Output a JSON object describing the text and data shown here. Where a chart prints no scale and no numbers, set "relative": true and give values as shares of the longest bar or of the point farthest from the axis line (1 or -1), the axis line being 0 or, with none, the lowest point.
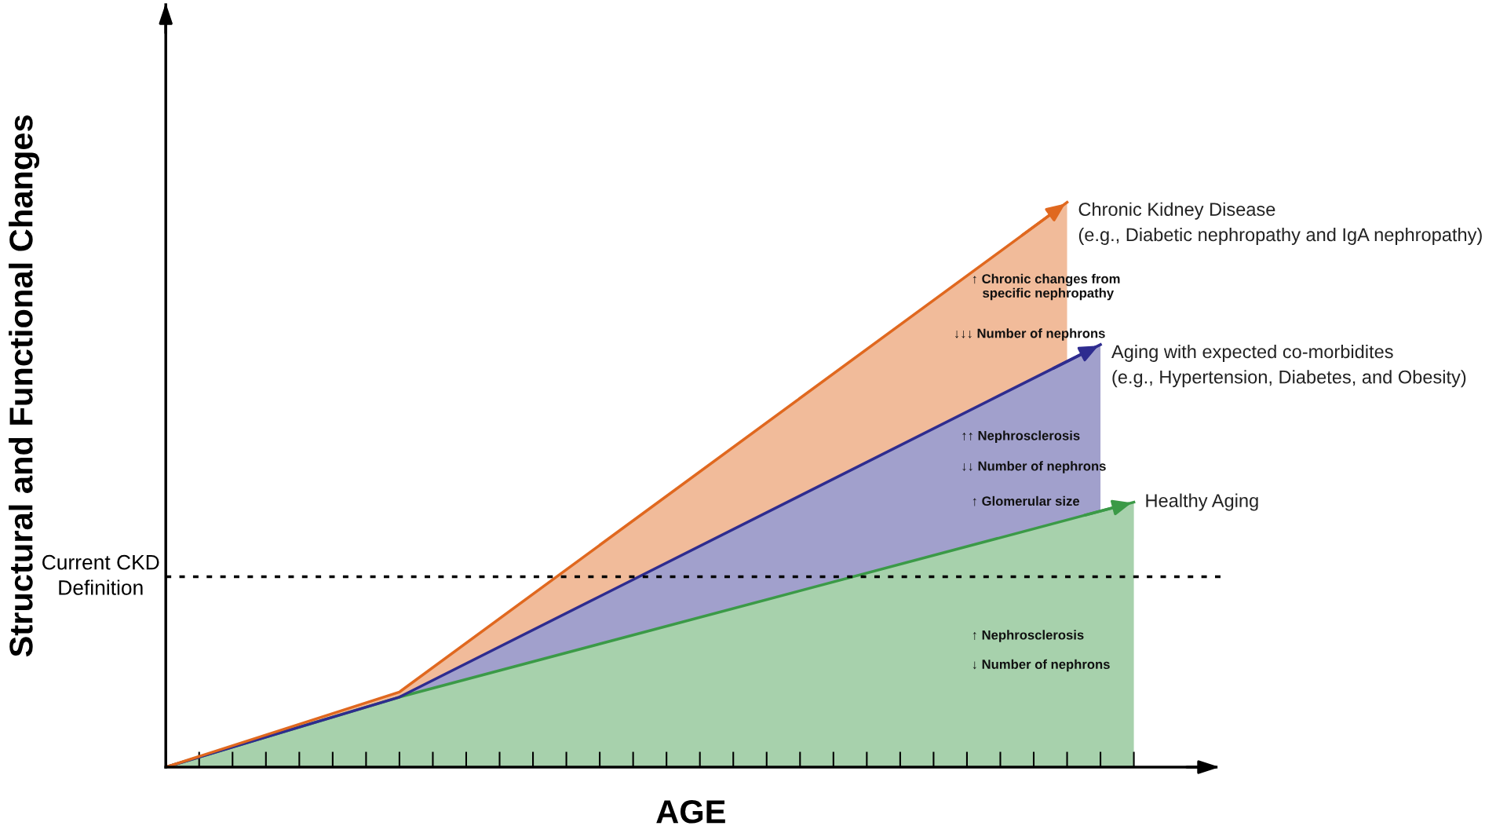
{
  "chart_data": {
    "type": "area",
    "relative": true,
    "xlabel": "AGE",
    "ylabel": "Structural and Functional Changes",
    "categories": [
      null,
      null,
      null,
      null,
      null,
      null,
      null,
      null,
      null,
      null,
      null,
      null,
      null,
      null,
      null,
      null,
      null,
      null,
      null,
      null,
      null,
      null,
      null,
      null,
      null,
      null,
      null,
      null,
      null,
      null
    ],
    "series": [
      {
        "name": "Healthy Aging",
        "color": "#3b9a47",
        "values": [
          0,
          null,
          null,
          null,
          null,
          null,
          null,
          0.124,
          null,
          null,
          null,
          null,
          null,
          null,
          null,
          null,
          null,
          null,
          null,
          null,
          null,
          null,
          null,
          null,
          null,
          null,
          null,
          null,
          null,
          0.469
        ]
      },
      {
        "name": "Aging with expected co-morbidites\n(e.g., Hypertension, Diabetes, and Obesity)",
        "color": "#2e2c8f",
        "values": [
          0,
          null,
          null,
          null,
          null,
          null,
          null,
          0.124,
          null,
          null,
          null,
          null,
          null,
          null,
          null,
          null,
          null,
          null,
          null,
          null,
          null,
          null,
          null,
          null,
          null,
          null,
          null,
          null,
          0.748,
          null
        ]
      },
      {
        "name": "Chronic Kidney Disease\n(e.g., Diabetic nephropathy and IgA nephropathy)",
        "color": "#e0681f",
        "values": [
          0,
          null,
          null,
          null,
          null,
          null,
          null,
          0.133,
          null,
          null,
          null,
          null,
          null,
          null,
          null,
          null,
          null,
          null,
          null,
          null,
          null,
          null,
          null,
          null,
          null,
          null,
          null,
          1,
          null,
          null
        ]
      }
    ],
    "ref_lines": [
      {
        "axis": "y",
        "value": 0.337,
        "label": "Current CKD\nDefinition",
        "line_style": "dotted",
        "color": "#000000"
      }
    ],
    "legend": "right",
    "annotations": [
      "↑ Chronic changes from\n   specific nephropathy",
      "↓↓↓ Number of nephrons",
      "↑↑ Nephrosclerosis",
      "↓↓ Number of nephrons",
      "↑ Glomerular size",
      "↑ Nephrosclerosis",
      "↓ Number of nephrons"
    ]
  }
}
